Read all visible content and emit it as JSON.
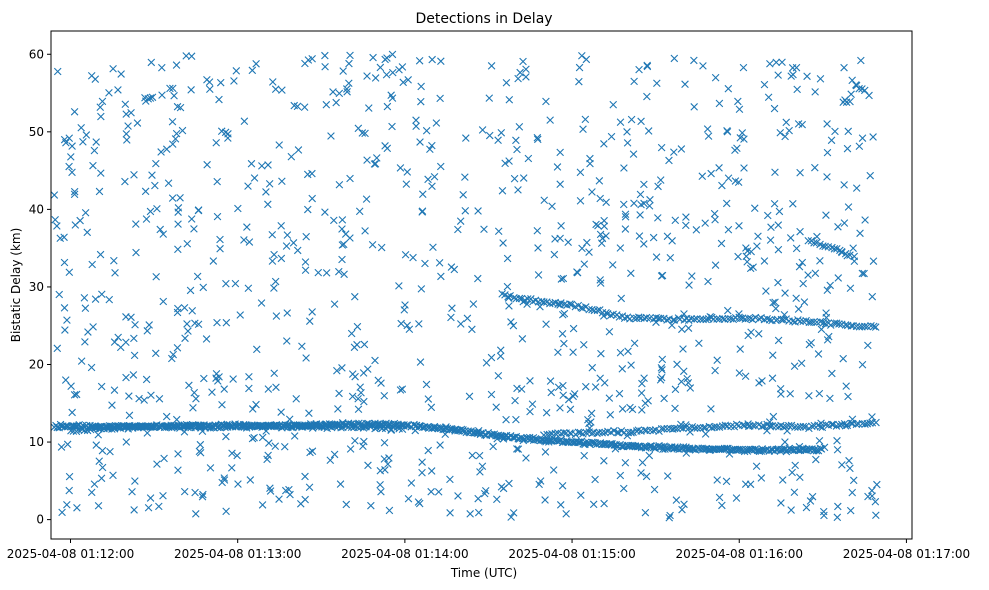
{
  "chart_data": {
    "type": "scatter",
    "title": "Detections in Delay",
    "xlabel": "Time (UTC)",
    "ylabel": "Bistatic Delay (km)",
    "marker": "x",
    "marker_color": "#1f77b4",
    "grid": false,
    "legend": "none",
    "xlim": [
      "2025-04-08 01:11:53",
      "2025-04-08 01:17:02"
    ],
    "ylim": [
      -2.5,
      63
    ],
    "x_ticks": [
      "2025-04-08 01:12:00",
      "2025-04-08 01:13:00",
      "2025-04-08 01:14:00",
      "2025-04-08 01:15:00",
      "2025-04-08 01:16:00",
      "2025-04-08 01:17:00"
    ],
    "y_ticks": [
      "0",
      "10",
      "20",
      "30",
      "40",
      "50",
      "60"
    ],
    "y_tick_values": [
      0,
      10,
      20,
      30,
      40,
      50,
      60
    ],
    "detection_window": [
      "2025-04-08 01:11:54",
      "2025-04-08 01:16:50"
    ],
    "tracks": [
      {
        "points": [
          [
            "2025-04-08 01:11:54",
            12.0
          ],
          [
            "2025-04-08 01:12:30",
            12.0
          ],
          [
            "2025-04-08 01:13:00",
            12.0
          ],
          [
            "2025-04-08 01:13:20",
            12.1
          ],
          [
            "2025-04-08 01:13:40",
            12.3
          ],
          [
            "2025-04-08 01:14:00",
            12.2
          ],
          [
            "2025-04-08 01:14:20",
            11.5
          ],
          [
            "2025-04-08 01:14:40",
            10.5
          ],
          [
            "2025-04-08 01:15:00",
            10.0
          ],
          [
            "2025-04-08 01:15:20",
            9.5
          ],
          [
            "2025-04-08 01:15:40",
            9.2
          ],
          [
            "2025-04-08 01:16:00",
            9.0
          ],
          [
            "2025-04-08 01:16:30",
            9.0
          ]
        ],
        "density": 2
      },
      {
        "points": [
          [
            "2025-04-08 01:14:50",
            11.0
          ],
          [
            "2025-04-08 01:15:20",
            11.3
          ],
          [
            "2025-04-08 01:15:40",
            11.8
          ],
          [
            "2025-04-08 01:16:00",
            12.2
          ],
          [
            "2025-04-08 01:16:25",
            12.0
          ],
          [
            "2025-04-08 01:16:50",
            12.5
          ]
        ],
        "density": 1
      },
      {
        "points": [
          [
            "2025-04-08 01:14:35",
            29.0
          ],
          [
            "2025-04-08 01:14:45",
            28.3
          ],
          [
            "2025-04-08 01:15:00",
            27.6
          ],
          [
            "2025-04-08 01:15:10",
            26.8
          ],
          [
            "2025-04-08 01:15:20",
            26.0
          ],
          [
            "2025-04-08 01:15:40",
            25.8
          ],
          [
            "2025-04-08 01:16:00",
            26.0
          ],
          [
            "2025-04-08 01:16:15",
            25.8
          ],
          [
            "2025-04-08 01:16:32",
            25.3
          ],
          [
            "2025-04-08 01:16:50",
            24.8
          ]
        ],
        "density": 1
      },
      {
        "points": [
          [
            "2025-04-08 01:16:25",
            36.0
          ],
          [
            "2025-04-08 01:16:35",
            34.8
          ],
          [
            "2025-04-08 01:16:42",
            33.7
          ]
        ],
        "density": 1
      },
      {
        "points": [
          [
            "2025-04-08 01:12:00",
            11.5
          ],
          [
            "2025-04-08 01:12:30",
            12.0
          ],
          [
            "2025-04-08 01:13:00",
            12.2
          ],
          [
            "2025-04-08 01:13:30",
            12.0
          ],
          [
            "2025-04-08 01:14:00",
            11.8
          ]
        ],
        "density": 1
      }
    ],
    "clutter_count": 1050,
    "clutter_y_range": [
      0,
      60
    ]
  }
}
